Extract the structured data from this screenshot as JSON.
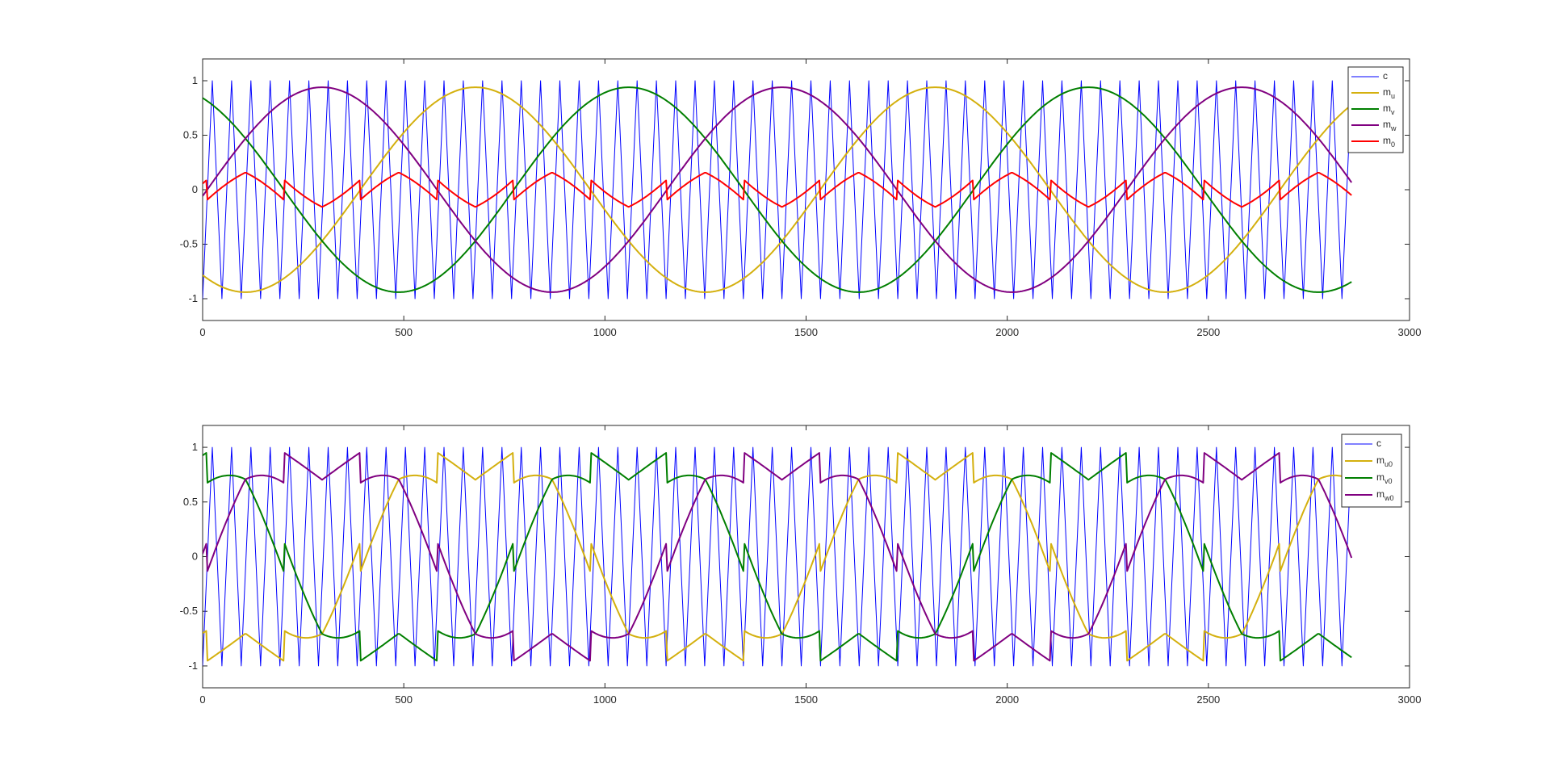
{
  "figure": {
    "background": "#ffffff"
  },
  "chart_data": [
    {
      "type": "line",
      "title": "",
      "xlabel": "",
      "ylabel": "",
      "xlim": [
        0,
        3000
      ],
      "ylim": [
        -1.2,
        1.2
      ],
      "xticks": [
        0,
        500,
        1000,
        1500,
        2000,
        2500,
        3000
      ],
      "yticks": [
        -1,
        -0.5,
        0,
        0.5,
        1
      ],
      "grid": false,
      "legend_position": "top-right",
      "carrier": {
        "name": "c",
        "color": "#0000ff",
        "period_samples": 48,
        "amplitude": 1,
        "x_end": 2856
      },
      "modulation": {
        "amplitude": 0.94,
        "period_samples": 1143,
        "u_peak_x": 678,
        "x_end": 2856
      },
      "series": [
        {
          "name": "c",
          "sub": "",
          "color": "#0000ff",
          "description": "triangular carrier between -1 and 1"
        },
        {
          "name": "m",
          "sub": "u",
          "color": "#d4b00e",
          "description": "sinusoidal reference, peak 0.94 near x=678"
        },
        {
          "name": "m",
          "sub": "v",
          "color": "#007f00",
          "description": "reference lagging m_u by 120 degrees"
        },
        {
          "name": "m",
          "sub": "w",
          "color": "#800080",
          "description": "reference leading m_u by 120 degrees"
        },
        {
          "name": "m",
          "sub": "0",
          "color": "#ff0000",
          "description": "zero-sequence signal, sawtooth between -0.5 and 0.5"
        }
      ]
    },
    {
      "type": "line",
      "title": "",
      "xlabel": "",
      "ylabel": "",
      "xlim": [
        0,
        3000
      ],
      "ylim": [
        -1.2,
        1.2
      ],
      "xticks": [
        0,
        500,
        1000,
        1500,
        2000,
        2500,
        3000
      ],
      "yticks": [
        -1,
        -0.5,
        0,
        0.5,
        1
      ],
      "grid": false,
      "legend_position": "top-right",
      "series": [
        {
          "name": "c",
          "sub": "",
          "color": "#0000ff",
          "description": "triangular carrier between -1 and 1"
        },
        {
          "name": "m",
          "sub": "u0",
          "color": "#d4b00e",
          "description": "m_u plus zero-sequence, clamped at +/-1"
        },
        {
          "name": "m",
          "sub": "v0",
          "color": "#007f00",
          "description": "m_v plus zero-sequence, clamped at +/-1"
        },
        {
          "name": "m",
          "sub": "w0",
          "color": "#800080",
          "description": "m_w plus zero-sequence, clamped at +/-1"
        }
      ]
    }
  ]
}
